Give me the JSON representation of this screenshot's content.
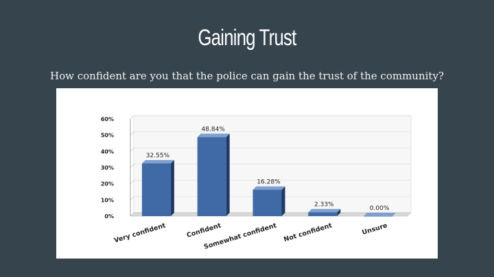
{
  "slide": {
    "title": "Gaining Trust",
    "subtitle": "How confident are you that the police can gain the trust of the community?"
  },
  "colors": {
    "background": "#36444e",
    "bar_front": "#3f6aa5",
    "bar_side": "#1f3a66",
    "bar_top": "#7f9fcf"
  },
  "chart_data": {
    "type": "bar",
    "categories": [
      "Very confident",
      "Confident",
      "Somewhat confident",
      "Not confident",
      "Unsure"
    ],
    "values": [
      32.55,
      48.84,
      16.28,
      2.33,
      0.0
    ],
    "data_labels": [
      "32.55%",
      "48.84%",
      "16.28%",
      "2.33%",
      "0.00%"
    ],
    "yticks": [
      "0%",
      "10%",
      "20%",
      "30%",
      "40%",
      "50%",
      "60%"
    ],
    "ylim": [
      0,
      60
    ],
    "title": "",
    "xlabel": "",
    "ylabel": "",
    "grid": true,
    "style": "3d"
  }
}
